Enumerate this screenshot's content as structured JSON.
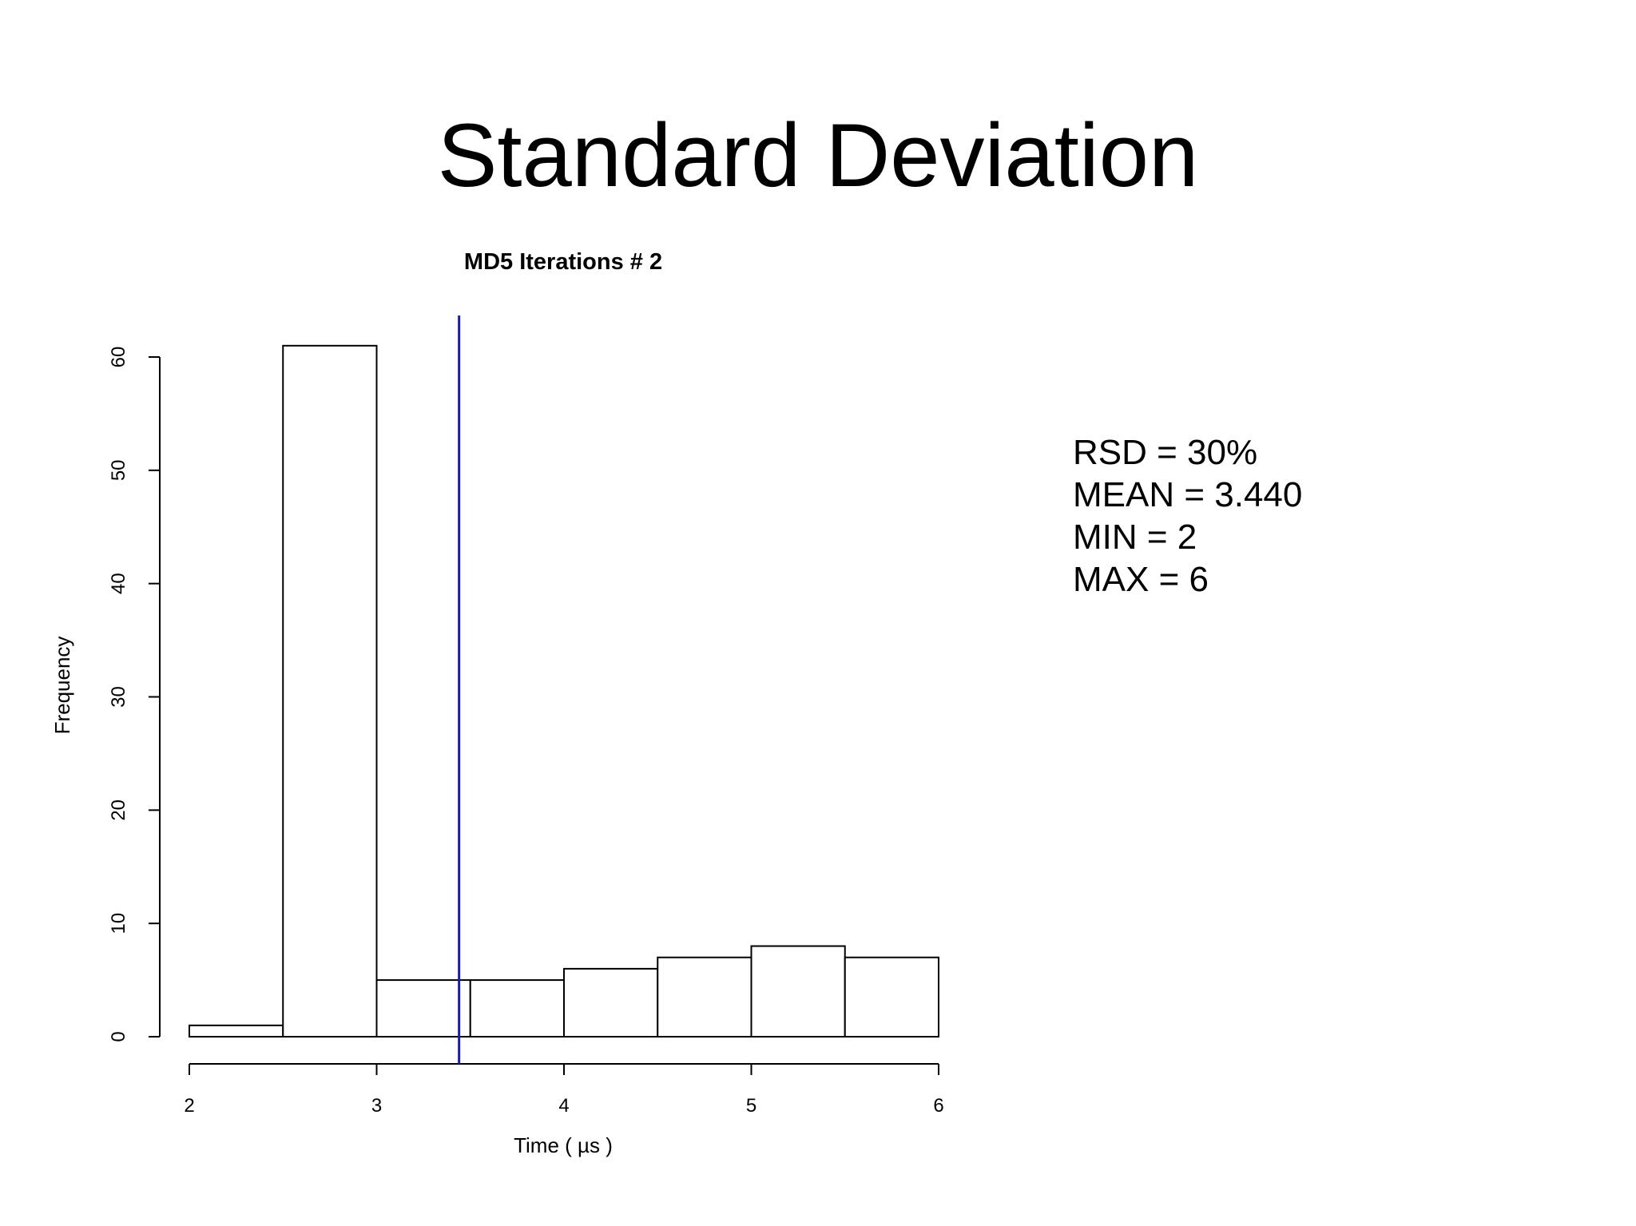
{
  "slide": {
    "title": "Standard Deviation"
  },
  "stats": {
    "rsd": "RSD = 30%",
    "mean": "MEAN = 3.440",
    "min": "MIN = 2",
    "max": "MAX = 6"
  },
  "chart_data": {
    "type": "bar",
    "title": "MD5 Iterations # 2",
    "xlabel": "Time ( µs )",
    "ylabel": "Frequency",
    "bins": [
      {
        "x0": 2.0,
        "x1": 2.5,
        "count": 1
      },
      {
        "x0": 2.5,
        "x1": 3.0,
        "count": 61
      },
      {
        "x0": 3.0,
        "x1": 3.5,
        "count": 5
      },
      {
        "x0": 3.5,
        "x1": 4.0,
        "count": 5
      },
      {
        "x0": 4.0,
        "x1": 4.5,
        "count": 6
      },
      {
        "x0": 4.5,
        "x1": 5.0,
        "count": 7
      },
      {
        "x0": 5.0,
        "x1": 5.5,
        "count": 8
      },
      {
        "x0": 5.5,
        "x1": 6.0,
        "count": 7
      }
    ],
    "xlim": [
      2,
      6
    ],
    "ylim": [
      0,
      60
    ],
    "xticks": [
      "2",
      "3",
      "4",
      "5",
      "6"
    ],
    "yticks": [
      "0",
      "10",
      "20",
      "30",
      "40",
      "50",
      "60"
    ],
    "mean_line": {
      "x": 3.44,
      "color": "#1a1aa8"
    },
    "grid": false,
    "legend": "none"
  }
}
